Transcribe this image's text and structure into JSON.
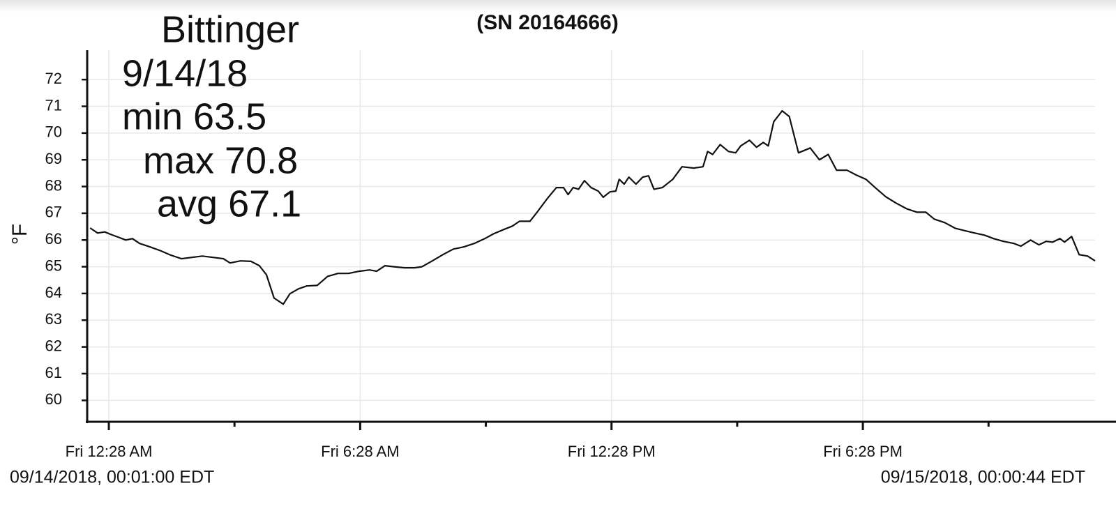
{
  "chart_data": {
    "type": "line",
    "title": "(SN 20164666)",
    "annotations": [
      "Bittinger",
      "9/14/18",
      "min 63.5",
      "max 70.8",
      "avg 67.1"
    ],
    "ylabel": "°F",
    "start_label": "09/14/2018, 00:01:00 EDT",
    "end_label": "09/15/2018, 00:00:44 EDT",
    "color": "#111111",
    "grid": true,
    "xlim": [
      -0.05,
      24.01
    ],
    "xticks": [
      {
        "value": 0.4667,
        "label": "Fri 12:28 AM"
      },
      {
        "value": 6.4667,
        "label": "Fri 6:28 AM"
      },
      {
        "value": 12.4667,
        "label": "Fri 12:28 PM"
      },
      {
        "value": 18.4667,
        "label": "Fri 6:28 PM"
      }
    ],
    "xminorticks": [
      3.4667,
      9.4667,
      15.4667,
      21.4667
    ],
    "ylim": [
      59.2,
      73.1
    ],
    "yticks": [
      60,
      61,
      62,
      63,
      64,
      65,
      66,
      67,
      68,
      69,
      70,
      71,
      72
    ],
    "x": [
      0.02,
      0.2,
      0.37,
      0.53,
      0.7,
      0.87,
      1.03,
      1.2,
      1.45,
      1.7,
      1.95,
      2.2,
      2.45,
      2.7,
      2.95,
      3.2,
      3.36,
      3.61,
      3.86,
      4.06,
      4.23,
      4.41,
      4.63,
      4.79,
      4.99,
      5.19,
      5.44,
      5.69,
      5.94,
      6.19,
      6.44,
      6.69,
      6.86,
      7.06,
      7.27,
      7.52,
      7.77,
      7.94,
      8.19,
      8.44,
      8.69,
      8.94,
      9.19,
      9.44,
      9.65,
      9.89,
      10.1,
      10.27,
      10.52,
      10.69,
      10.94,
      11.15,
      11.32,
      11.43,
      11.55,
      11.68,
      11.82,
      11.98,
      12.15,
      12.27,
      12.43,
      12.57,
      12.65,
      12.77,
      12.88,
      13.05,
      13.21,
      13.35,
      13.48,
      13.68,
      13.93,
      14.15,
      14.43,
      14.65,
      14.76,
      14.88,
      15.06,
      15.26,
      15.43,
      15.55,
      15.76,
      15.93,
      16.09,
      16.21,
      16.34,
      16.54,
      16.71,
      16.93,
      17.21,
      17.43,
      17.64,
      17.84,
      18.09,
      18.31,
      18.54,
      18.76,
      19.01,
      19.26,
      19.51,
      19.76,
      19.97,
      20.17,
      20.42,
      20.67,
      20.92,
      21.14,
      21.37,
      21.59,
      21.82,
      22.07,
      22.24,
      22.47,
      22.67,
      22.84,
      23.0,
      23.17,
      23.28,
      23.45,
      23.63,
      23.83,
      24.01
    ],
    "values": [
      66.45,
      66.26,
      66.3,
      66.2,
      66.1,
      66.0,
      66.05,
      65.87,
      65.74,
      65.6,
      65.43,
      65.3,
      65.35,
      65.4,
      65.35,
      65.3,
      65.14,
      65.22,
      65.2,
      65.04,
      64.7,
      63.83,
      63.6,
      63.99,
      64.17,
      64.28,
      64.3,
      64.64,
      64.75,
      64.75,
      64.83,
      64.88,
      64.83,
      65.04,
      65.0,
      64.96,
      64.96,
      65.0,
      65.22,
      65.45,
      65.66,
      65.74,
      65.87,
      66.05,
      66.23,
      66.39,
      66.52,
      66.7,
      66.7,
      67.04,
      67.56,
      67.96,
      67.96,
      67.7,
      67.96,
      67.9,
      68.22,
      67.96,
      67.83,
      67.6,
      67.8,
      67.83,
      68.27,
      68.09,
      68.35,
      68.09,
      68.35,
      68.4,
      67.9,
      67.96,
      68.27,
      68.74,
      68.69,
      68.74,
      69.31,
      69.2,
      69.57,
      69.31,
      69.26,
      69.52,
      69.73,
      69.47,
      69.65,
      69.52,
      70.43,
      70.83,
      70.62,
      69.26,
      69.44,
      69.0,
      69.2,
      68.61,
      68.61,
      68.43,
      68.27,
      67.96,
      67.62,
      67.38,
      67.17,
      67.04,
      67.04,
      66.78,
      66.65,
      66.44,
      66.34,
      66.26,
      66.18,
      66.05,
      65.95,
      65.87,
      65.77,
      66.0,
      65.82,
      65.95,
      65.92,
      66.05,
      65.92,
      66.13,
      65.45,
      65.4,
      65.22
    ]
  }
}
